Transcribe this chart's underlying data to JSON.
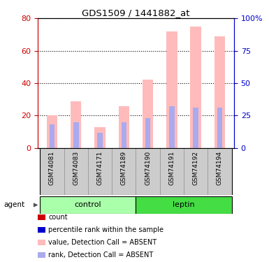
{
  "title": "GDS1509 / 1441882_at",
  "samples": [
    "GSM74081",
    "GSM74083",
    "GSM74171",
    "GSM74189",
    "GSM74190",
    "GSM74191",
    "GSM74192",
    "GSM74194"
  ],
  "groups": [
    {
      "name": "control",
      "indices": [
        0,
        1,
        2,
        3
      ],
      "color": "#aaffaa"
    },
    {
      "name": "leptin",
      "indices": [
        4,
        5,
        6,
        7
      ],
      "color": "#44dd44"
    }
  ],
  "value_absent": [
    20,
    29,
    13,
    26,
    42,
    72,
    75,
    69
  ],
  "rank_absent": [
    18,
    20,
    12,
    20,
    23,
    32,
    31,
    31
  ],
  "left_ylim": [
    0,
    80
  ],
  "right_ylim": [
    0,
    100
  ],
  "left_ticks": [
    0,
    20,
    40,
    60,
    80
  ],
  "right_ticks": [
    0,
    25,
    50,
    75,
    100
  ],
  "left_tick_labels": [
    "0",
    "20",
    "40",
    "60",
    "80"
  ],
  "right_tick_labels": [
    "0",
    "25",
    "50",
    "75",
    "100%"
  ],
  "left_color": "#cc0000",
  "right_color": "#0000cc",
  "value_absent_color": "#ffbbbb",
  "rank_absent_color": "#aaaaee",
  "sample_bg": "#cccccc",
  "agent_label": "agent",
  "legend_items": [
    {
      "label": "count",
      "color": "#cc0000"
    },
    {
      "label": "percentile rank within the sample",
      "color": "#0000cc"
    },
    {
      "label": "value, Detection Call = ABSENT",
      "color": "#ffbbbb"
    },
    {
      "label": "rank, Detection Call = ABSENT",
      "color": "#aaaaee"
    }
  ]
}
